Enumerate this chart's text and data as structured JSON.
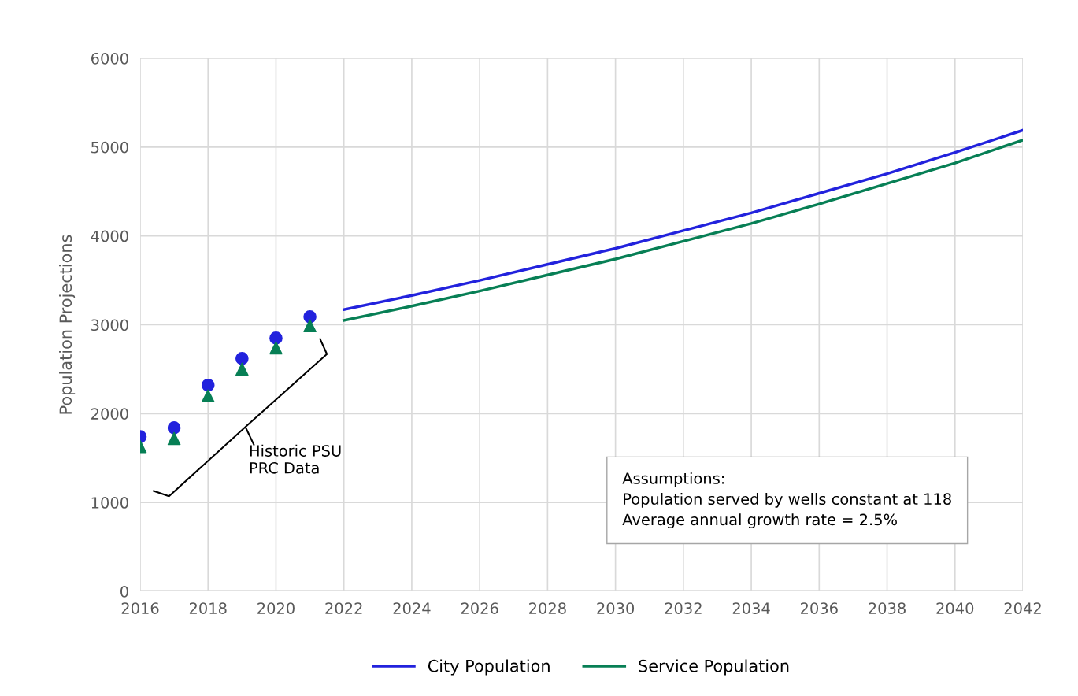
{
  "chart_data": {
    "type": "line",
    "ylabel": "Population Projections",
    "xlim": [
      2016,
      2042
    ],
    "xticks": [
      2016,
      2018,
      2020,
      2022,
      2024,
      2026,
      2028,
      2030,
      2032,
      2034,
      2036,
      2038,
      2040,
      2042
    ],
    "ylim": [
      0,
      6000
    ],
    "yticks": [
      0,
      1000,
      2000,
      3000,
      4000,
      5000,
      6000
    ],
    "grid": true,
    "legend": "bottom",
    "series": [
      {
        "name": "City Population",
        "color": "#2222dd",
        "marker": "none",
        "x": [
          2022,
          2024,
          2026,
          2028,
          2030,
          2032,
          2034,
          2036,
          2038,
          2040,
          2042
        ],
        "values": [
          3170,
          3330,
          3500,
          3680,
          3860,
          4060,
          4260,
          4480,
          4700,
          4940,
          5190
        ]
      },
      {
        "name": "Service Population",
        "color": "#077f55",
        "marker": "none",
        "x": [
          2022,
          2024,
          2026,
          2028,
          2030,
          2032,
          2034,
          2036,
          2038,
          2040,
          2042
        ],
        "values": [
          3050,
          3210,
          3380,
          3560,
          3740,
          3940,
          4140,
          4360,
          4590,
          4820,
          5080
        ]
      },
      {
        "type": "scatter",
        "color": "#2222dd",
        "marker": "circle",
        "x": [
          2016,
          2017,
          2018,
          2019,
          2020,
          2021
        ],
        "values": [
          1740,
          1840,
          2320,
          2620,
          2850,
          3090
        ]
      },
      {
        "type": "scatter",
        "color": "#077f55",
        "marker": "triangle",
        "x": [
          2016,
          2017,
          2018,
          2019,
          2020,
          2021
        ],
        "values": [
          1630,
          1720,
          2200,
          2500,
          2740,
          2990
        ]
      }
    ],
    "annotations": [
      "Historic PSU\nPRC Data",
      "Assumptions:\nPopulation served by wells constant at 118\nAverage annual growth rate = 2.5%"
    ]
  }
}
